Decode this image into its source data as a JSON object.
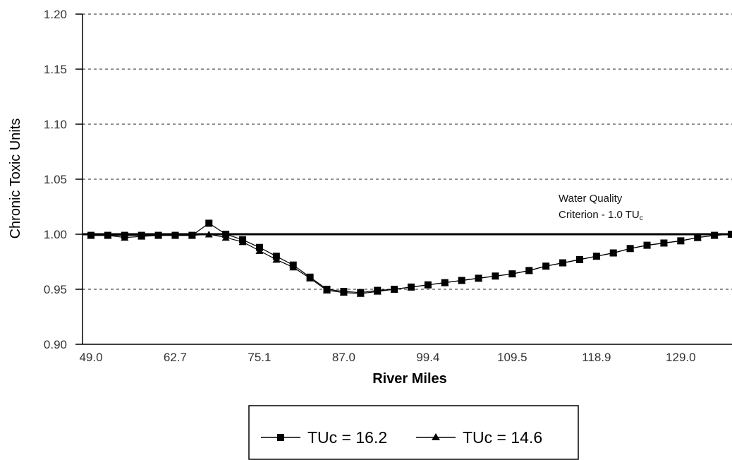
{
  "chart_data": {
    "type": "line",
    "xlabel": "River Miles",
    "ylabel": "Chronic Toxic Units",
    "ylim": [
      0.9,
      1.2
    ],
    "y_ticks": [
      "0.90",
      "0.95",
      "1.00",
      "1.05",
      "1.10",
      "1.15",
      "1.20"
    ],
    "x_ticks": [
      "49.0",
      "62.7",
      "75.1",
      "87.0",
      "99.4",
      "109.5",
      "118.9",
      "129.0"
    ],
    "grid": "horizontal dashed",
    "reference_line": {
      "value": 1.0,
      "label_line1": "Water Quality",
      "label_line2_main": "Criterion - 1.0 TU",
      "label_line2_sub": "c"
    },
    "series": [
      {
        "name": "TUc = 16.2",
        "marker": "square",
        "color": "#000000",
        "values": [
          0.999,
          0.999,
          0.999,
          0.999,
          0.999,
          0.999,
          0.999,
          1.01,
          1.0,
          0.995,
          0.988,
          0.98,
          0.972,
          0.961,
          0.95,
          0.948,
          0.947,
          0.949,
          0.95,
          0.952,
          0.954,
          0.956,
          0.958,
          0.96,
          0.962,
          0.964,
          0.967,
          0.971,
          0.974,
          0.977,
          0.98,
          0.983,
          0.987,
          0.99,
          0.992,
          0.994,
          0.997,
          0.999,
          1.0
        ]
      },
      {
        "name": "TUc = 14.6",
        "marker": "triangle",
        "color": "#000000",
        "values": [
          0.999,
          0.999,
          0.997,
          0.998,
          0.999,
          0.999,
          0.999,
          1.0,
          0.997,
          0.993,
          0.985,
          0.977,
          0.97,
          0.96,
          0.949,
          0.947,
          0.946,
          0.948,
          0.95,
          0.952,
          0.954,
          0.956,
          0.958,
          0.96,
          0.962,
          0.964,
          0.967,
          0.971,
          0.974,
          0.977,
          0.98,
          0.983,
          0.987,
          0.99,
          0.992,
          0.994,
          0.997,
          0.999,
          1.0
        ]
      }
    ],
    "legend": {
      "placement": "bottom-center",
      "entries": [
        "TUc = 16.2",
        "TUc = 14.6"
      ]
    }
  }
}
